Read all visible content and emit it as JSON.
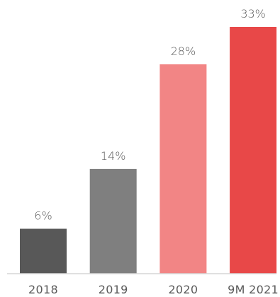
{
  "chart_data": {
    "type": "bar",
    "categories": [
      "2018",
      "2019",
      "2020",
      "9M 2021"
    ],
    "values": [
      6,
      14,
      28,
      33
    ],
    "value_labels": [
      "6%",
      "14%",
      "28%",
      "33%"
    ],
    "unit": "%",
    "ylim": [
      0,
      33
    ],
    "grid": false,
    "legend": "none",
    "title": "",
    "xlabel": "",
    "ylabel": "",
    "bar_colors": [
      "#585858",
      "#7f7f7f",
      "#f28585",
      "#e84848"
    ],
    "axis_color": "#d6d6d6",
    "text_color": "#5a5a5a"
  }
}
